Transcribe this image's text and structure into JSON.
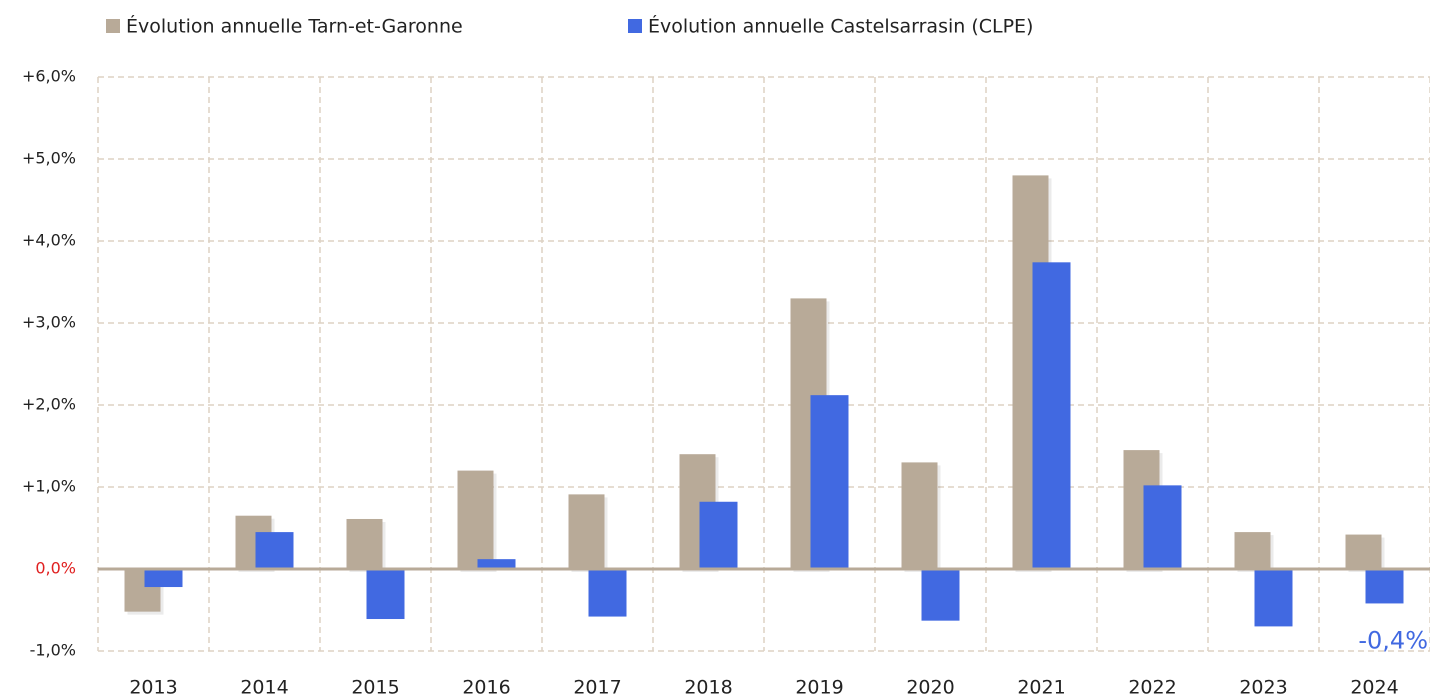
{
  "chart_data": {
    "type": "bar",
    "categories": [
      "2013",
      "2014",
      "2015",
      "2016",
      "2017",
      "2018",
      "2019",
      "2020",
      "2021",
      "2022",
      "2023",
      "2024"
    ],
    "series": [
      {
        "name": "Évolution annuelle Tarn-et-Garonne",
        "color": "#b8aa98",
        "values": [
          -0.52,
          0.65,
          0.61,
          1.2,
          0.91,
          1.4,
          3.3,
          1.3,
          4.8,
          1.45,
          0.45,
          0.42
        ]
      },
      {
        "name": "Évolution annuelle Castelsarrasin (CLPE)",
        "color": "#4169e1",
        "values": [
          -0.22,
          0.45,
          -0.61,
          0.12,
          -0.58,
          0.82,
          2.12,
          -0.63,
          3.74,
          1.02,
          -0.7,
          -0.42
        ],
        "value_labels": [
          null,
          null,
          null,
          null,
          null,
          null,
          null,
          null,
          null,
          null,
          null,
          "-0,4%"
        ]
      }
    ],
    "ylim": [
      -1,
      6
    ],
    "yticks": [
      {
        "value": -1,
        "label": "-1,0%"
      },
      {
        "value": 0,
        "label": "0,0%"
      },
      {
        "value": 1,
        "label": "+1,0%"
      },
      {
        "value": 2,
        "label": "+2,0%"
      },
      {
        "value": 3,
        "label": "+3,0%"
      },
      {
        "value": 4,
        "label": "+4,0%"
      },
      {
        "value": 5,
        "label": "+5,0%"
      },
      {
        "value": 6,
        "label": "+6,0%"
      }
    ],
    "grid": true,
    "legend": "top"
  }
}
